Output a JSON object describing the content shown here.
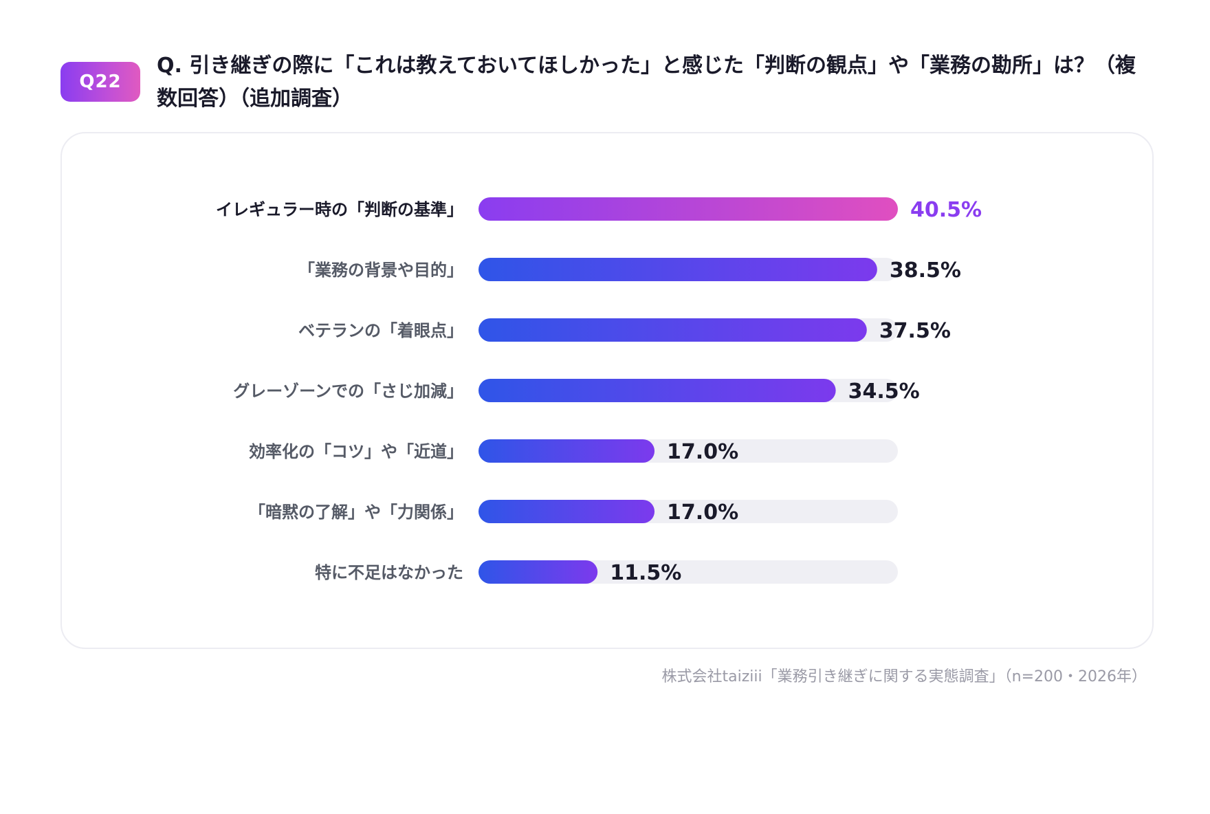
{
  "badge": "Q22",
  "title": "Q. 引き継ぎの際に「これは教えておいてほしかった」と感じた「判断の観点」や「業務の勘所」は？（複数回答）（追加調査）",
  "source": "株式会社taiziii「業務引き継ぎに関する実態調査」（n=200・2026年）",
  "colors": {
    "highlight_start": "#8a3df0",
    "highlight_end": "#e04fc0",
    "bar_start": "#2f55e8",
    "bar_end": "#7c3aed",
    "track": "#efeff4",
    "highlight_text": "#8a3df0",
    "text": "#1a1a2a",
    "label_text": "#555a66"
  },
  "chart_data": {
    "type": "bar",
    "orientation": "horizontal",
    "categories": [
      "イレギュラー時の「判断の基準」",
      "「業務の背景や目的」",
      "ベテランの「着眼点」",
      "グレーゾーンでの「さじ加減」",
      "効率化の「コツ」や「近道」",
      "「暗黙の了解」や「力関係」",
      "特に不足はなかった"
    ],
    "values": [
      40.5,
      38.5,
      37.5,
      34.5,
      17.0,
      17.0,
      11.5
    ],
    "value_labels": [
      "40.5%",
      "38.5%",
      "37.5%",
      "34.5%",
      "17.0%",
      "17.0%",
      "11.5%"
    ],
    "highlight_index": 0,
    "xlim": [
      0,
      40.5
    ],
    "grid": false,
    "legend": "none"
  }
}
